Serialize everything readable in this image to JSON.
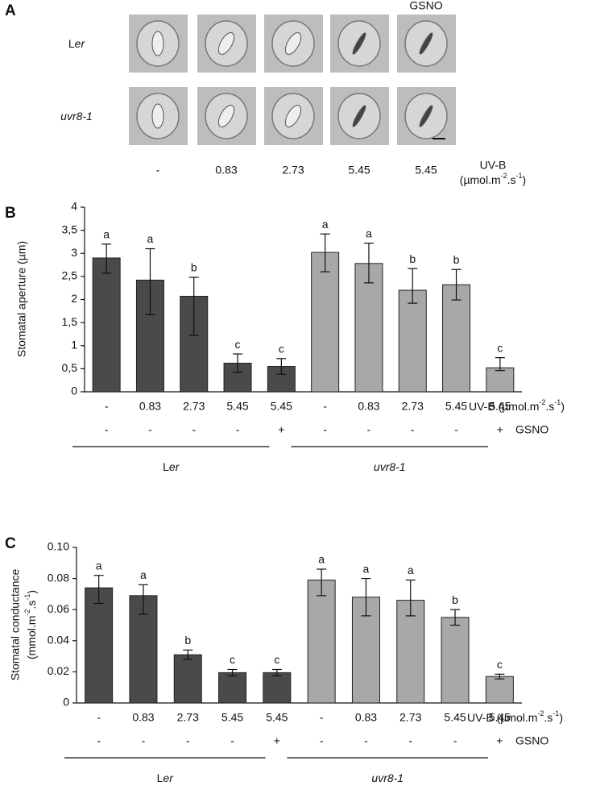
{
  "panel_a": {
    "panel_label": "A",
    "rows": [
      {
        "parts": [
          "L",
          "er"
        ]
      },
      {
        "parts": [
          "uvr8-1"
        ]
      }
    ],
    "column_header": "GSNO",
    "doses": [
      "-",
      "0.83",
      "2.73",
      "5.45",
      "5.45"
    ],
    "unit_line1": "UV-B",
    "unit_line2": [
      "(µmol.m",
      "-2",
      ".s",
      "-1",
      ")"
    ]
  },
  "chart_data": [
    {
      "type": "bar",
      "panel_label": "B",
      "ylabel": [
        "Stomatal aperture (µm)"
      ],
      "categories": [
        "-",
        "0.83",
        "2.73",
        "5.45",
        "5.45",
        "-",
        "0.83",
        "2.73",
        "5.45",
        "5.45"
      ],
      "x_label": [
        "UV-B (µmol.m",
        "-2",
        ".s",
        "-1",
        ")"
      ],
      "gsno": [
        "-",
        "-",
        "-",
        "-",
        "+",
        "-",
        "-",
        "-",
        "-",
        "+"
      ],
      "gsno_label": "GSNO",
      "groups": [
        {
          "parts": [
            "L",
            "er"
          ]
        },
        {
          "parts": [
            "uvr8-1"
          ]
        }
      ],
      "colors": [
        "#4a4a4a",
        "#a8a8a8"
      ],
      "values": [
        2.9,
        2.42,
        2.07,
        0.62,
        0.55,
        3.02,
        2.78,
        2.2,
        2.32,
        0.52
      ],
      "errors_up": [
        0.3,
        0.68,
        0.41,
        0.2,
        0.17,
        0.4,
        0.44,
        0.47,
        0.33,
        0.22
      ],
      "errors_down": [
        0.33,
        0.75,
        0.85,
        0.2,
        0.17,
        0.42,
        0.42,
        0.28,
        0.33,
        0.06
      ],
      "letters": [
        "a",
        "a",
        "b",
        "c",
        "c",
        "a",
        "a",
        "b",
        "b",
        "c"
      ],
      "ylim": [
        0,
        4
      ],
      "yticks": [
        0,
        {
          "value": 0.5,
          "label": "0,5"
        },
        1,
        {
          "value": 1.5,
          "label": "1,5"
        },
        2,
        {
          "value": 2.5,
          "label": "2,5"
        },
        3,
        {
          "value": 3.5,
          "label": "3,5"
        },
        4
      ]
    },
    {
      "type": "bar",
      "panel_label": "C",
      "ylabel": [
        "Stomatal conductance",
        "(mmol.m",
        "-2",
        ".s",
        "-1",
        ")"
      ],
      "categories": [
        "-",
        "0.83",
        "2.73",
        "5.45",
        "5.45",
        "-",
        "0.83",
        "2.73",
        "5.45",
        "5.45"
      ],
      "x_label": [
        "UV-B (µmol.m",
        "-2",
        ".s",
        "-1",
        ")"
      ],
      "gsno": [
        "-",
        "-",
        "-",
        "-",
        "+",
        "-",
        "-",
        "-",
        "-",
        "+"
      ],
      "gsno_label": "GSNO",
      "groups": [
        {
          "parts": [
            "L",
            "er"
          ]
        },
        {
          "parts": [
            "uvr8-1"
          ]
        }
      ],
      "colors": [
        "#4a4a4a",
        "#a8a8a8"
      ],
      "values": [
        0.074,
        0.069,
        0.031,
        0.0195,
        0.0195,
        0.079,
        0.068,
        0.066,
        0.055,
        0.017
      ],
      "errors_up": [
        0.008,
        0.007,
        0.003,
        0.002,
        0.002,
        0.007,
        0.012,
        0.013,
        0.005,
        0.0015
      ],
      "errors_down": [
        0.01,
        0.012,
        0.003,
        0.002,
        0.002,
        0.01,
        0.012,
        0.01,
        0.005,
        0.0015
      ],
      "letters": [
        "a",
        "a",
        "b",
        "c",
        "c",
        "a",
        "a",
        "a",
        "b",
        "c"
      ],
      "ylim": [
        0,
        0.1
      ],
      "yticks": [
        0,
        0.02,
        0.04,
        0.06,
        0.08,
        {
          "value": 0.1,
          "label": "0.10"
        }
      ]
    }
  ]
}
